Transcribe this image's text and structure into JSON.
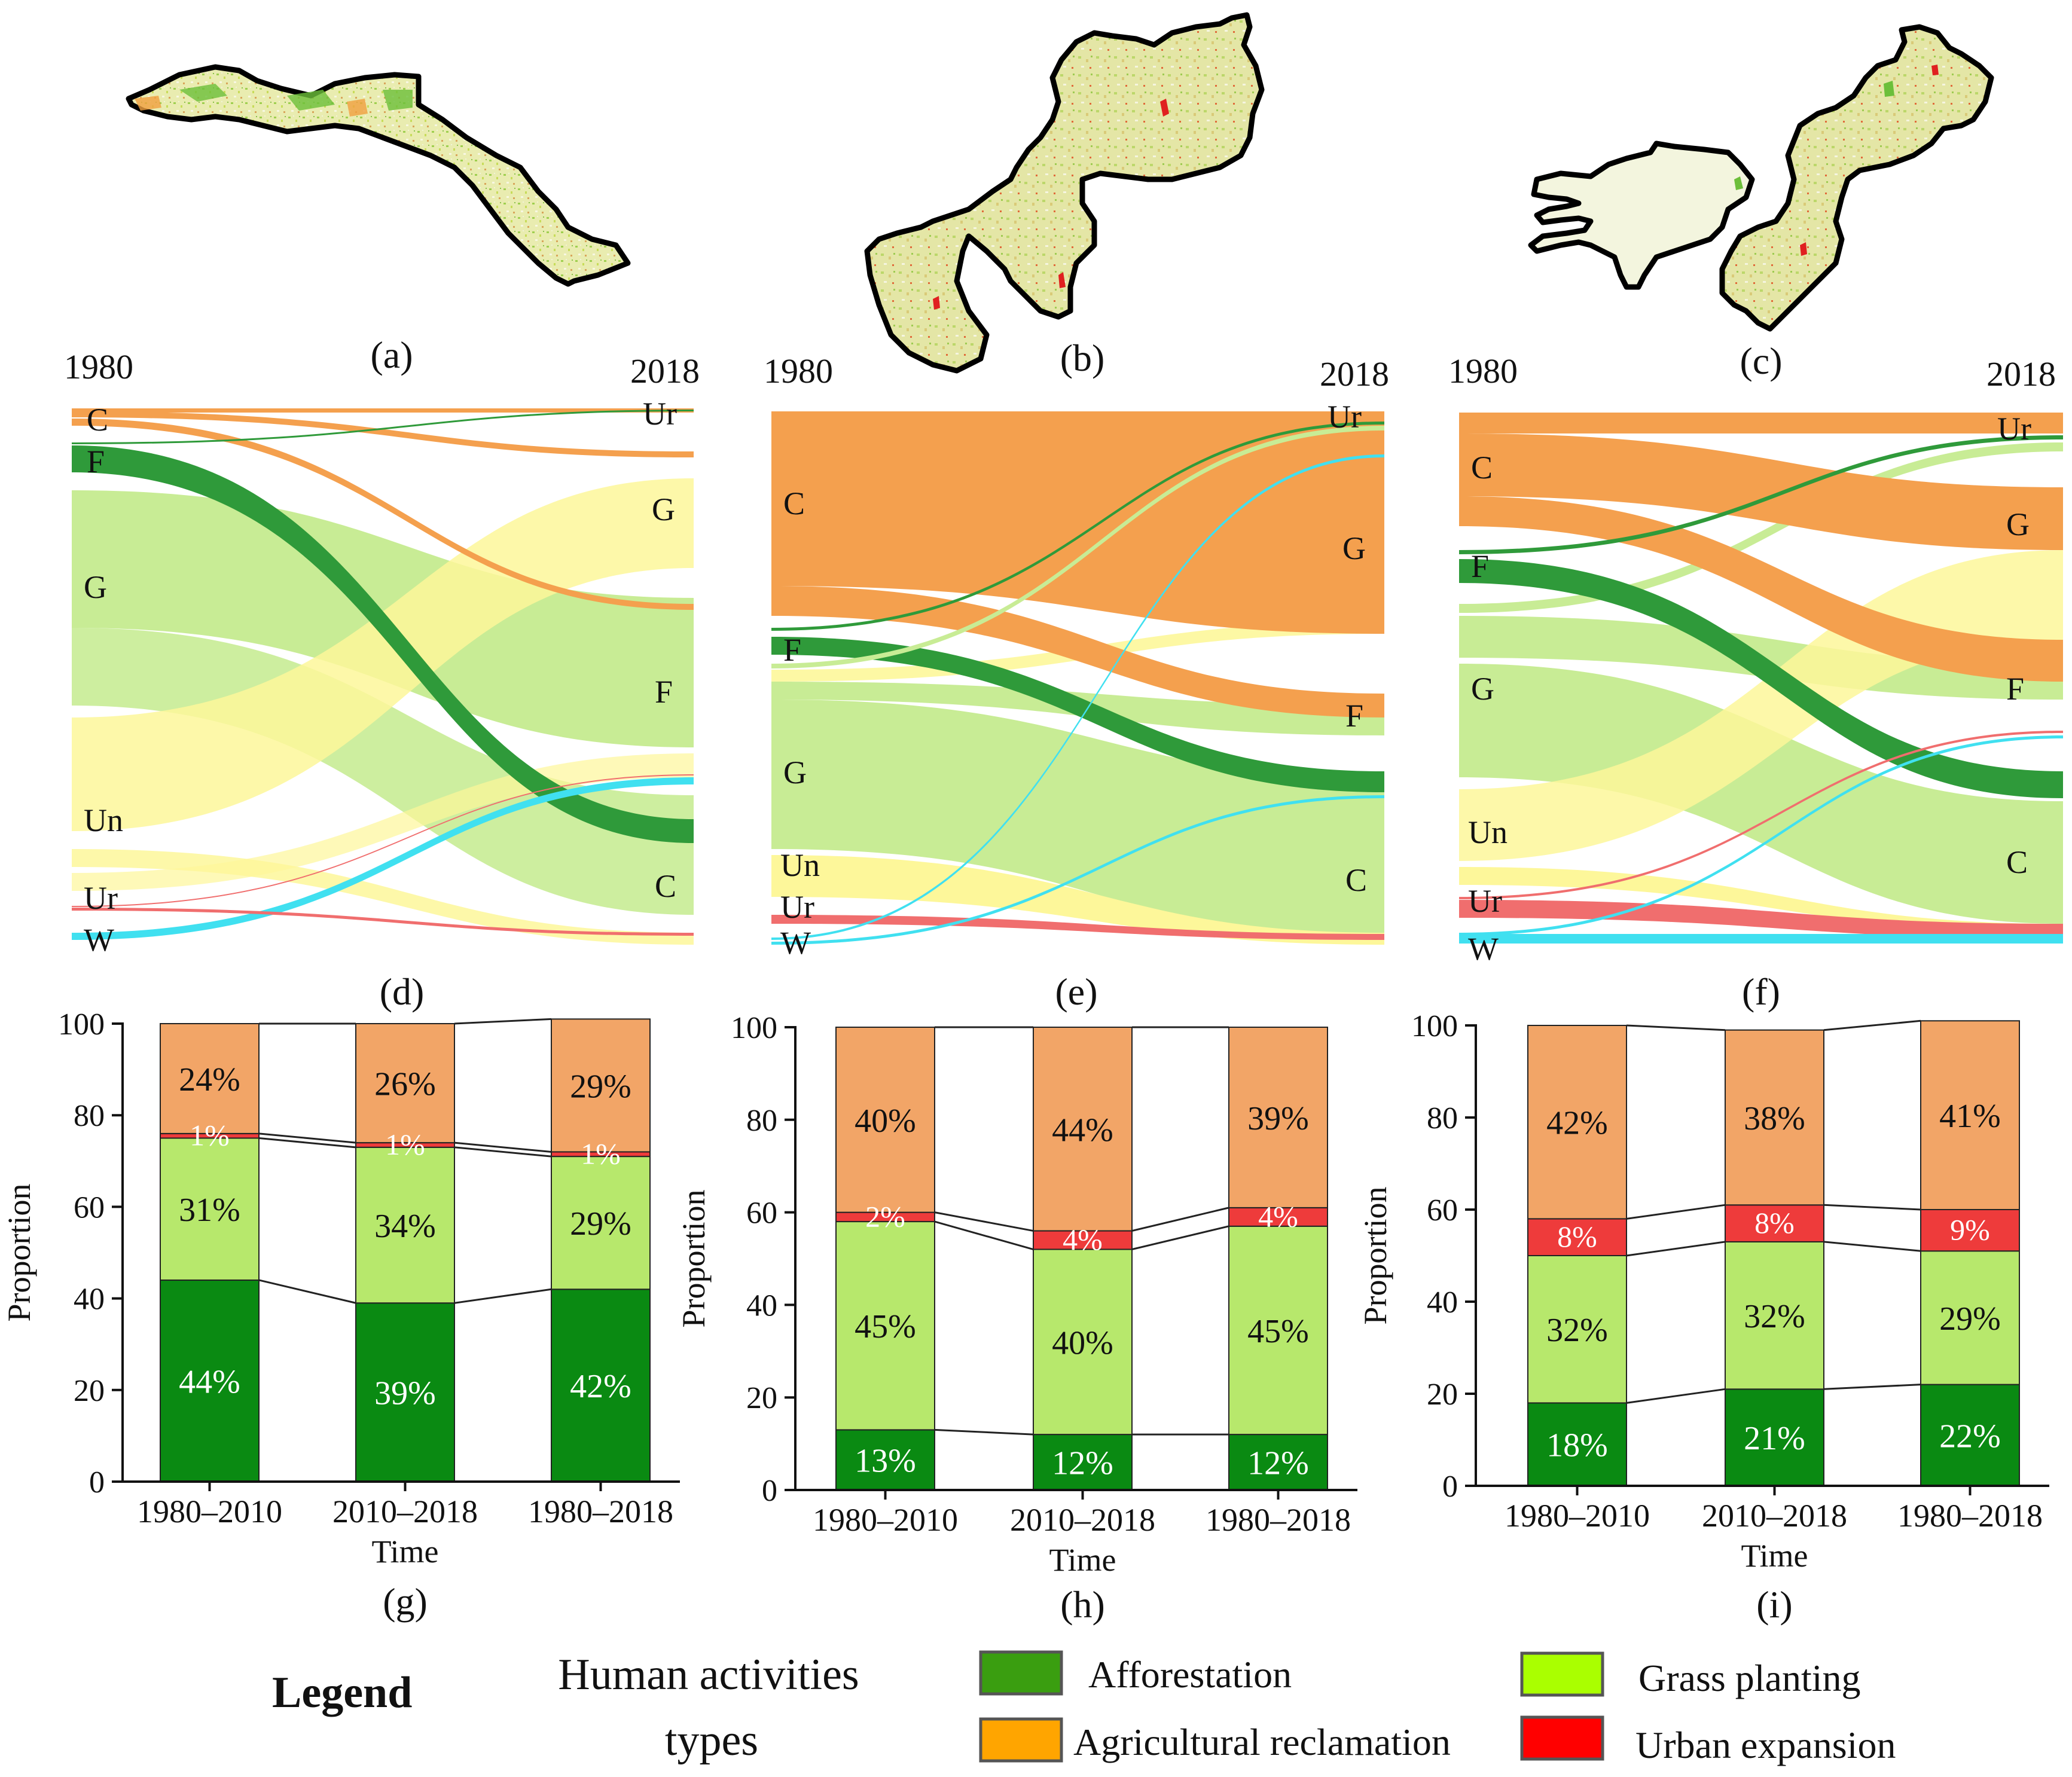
{
  "maps": [
    {
      "label": "(a)"
    },
    {
      "label": "(b)"
    },
    {
      "label": "(c)"
    }
  ],
  "sankeys": [
    {
      "label": "(d)",
      "year_start": "1980",
      "year_end": "2018",
      "left_labels": [
        "C",
        "F",
        "G",
        "Un",
        "Ur",
        "W"
      ],
      "right_labels": [
        "Ur",
        "G",
        "F",
        "C"
      ]
    },
    {
      "label": "(e)",
      "year_start": "1980",
      "year_end": "2018",
      "left_labels": [
        "C",
        "F",
        "G",
        "Un",
        "Ur",
        "W"
      ],
      "right_labels": [
        "Ur",
        "G",
        "F",
        "C"
      ]
    },
    {
      "label": "(f)",
      "year_start": "1980",
      "year_end": "2018",
      "left_labels": [
        "C",
        "F",
        "G",
        "Un",
        "Ur",
        "W"
      ],
      "right_labels": [
        "Ur",
        "G",
        "F",
        "C"
      ]
    }
  ],
  "chart_data": [
    {
      "type": "bar",
      "stacked": true,
      "label": "(g)",
      "categories": [
        "1980–2010",
        "2010–2018",
        "1980–2018"
      ],
      "series": [
        {
          "name": "Afforestation",
          "values": [
            44,
            39,
            42
          ],
          "labels": [
            "44%",
            "39%",
            "42%"
          ]
        },
        {
          "name": "Grass planting",
          "values": [
            31,
            34,
            29
          ],
          "labels": [
            "31%",
            "34%",
            "29%"
          ]
        },
        {
          "name": "Urban expansion",
          "values": [
            1,
            1,
            1
          ],
          "labels": [
            "1%",
            "1%",
            "1%"
          ]
        },
        {
          "name": "Agricultural reclamation",
          "values": [
            24,
            26,
            29
          ],
          "labels": [
            "24%",
            "26%",
            "29%"
          ]
        }
      ],
      "xlabel": "Time",
      "ylabel": "Proportion",
      "ylim": [
        0,
        100
      ],
      "yticks": [
        "0",
        "20",
        "40",
        "60",
        "80",
        "100"
      ]
    },
    {
      "type": "bar",
      "stacked": true,
      "label": "(h)",
      "categories": [
        "1980–2010",
        "2010–2018",
        "1980–2018"
      ],
      "series": [
        {
          "name": "Afforestation",
          "values": [
            13,
            12,
            12
          ],
          "labels": [
            "13%",
            "12%",
            "12%"
          ]
        },
        {
          "name": "Grass planting",
          "values": [
            45,
            40,
            45
          ],
          "labels": [
            "45%",
            "40%",
            "45%"
          ]
        },
        {
          "name": "Urban expansion",
          "values": [
            2,
            4,
            4
          ],
          "labels": [
            "2%",
            "4%",
            "4%"
          ]
        },
        {
          "name": "Agricultural reclamation",
          "values": [
            40,
            44,
            39
          ],
          "labels": [
            "40%",
            "44%",
            "39%"
          ]
        }
      ],
      "xlabel": "Time",
      "ylabel": "Proportion",
      "ylim": [
        0,
        100
      ],
      "yticks": [
        "0",
        "20",
        "40",
        "60",
        "80",
        "100"
      ]
    },
    {
      "type": "bar",
      "stacked": true,
      "label": "(i)",
      "categories": [
        "1980–2010",
        "2010–2018",
        "1980–2018"
      ],
      "series": [
        {
          "name": "Afforestation",
          "values": [
            18,
            21,
            22
          ],
          "labels": [
            "18%",
            "21%",
            "22%"
          ]
        },
        {
          "name": "Grass planting",
          "values": [
            32,
            32,
            29
          ],
          "labels": [
            "32%",
            "32%",
            "29%"
          ]
        },
        {
          "name": "Urban expansion",
          "values": [
            8,
            8,
            9
          ],
          "labels": [
            "8%",
            "8%",
            "9%"
          ]
        },
        {
          "name": "Agricultural reclamation",
          "values": [
            42,
            38,
            41
          ],
          "labels": [
            "42%",
            "38%",
            "41%"
          ]
        }
      ],
      "xlabel": "Time",
      "ylabel": "Proportion",
      "ylim": [
        0,
        100
      ],
      "yticks": [
        "0",
        "20",
        "40",
        "60",
        "80",
        "100"
      ]
    }
  ],
  "colors": {
    "afforestation_bar": "#0a8a12",
    "grass_bar": "#b7e86c",
    "urban_bar": "#ee3b3b",
    "agri_bar": "#f2a567",
    "afforestation_legend": "#3a9e10",
    "grass_legend": "#aaff00",
    "agri_legend": "#ffa500",
    "urban_legend": "#ff0000",
    "sankey_C": "#f4a04e",
    "sankey_F": "#2f9a3a",
    "sankey_G": "#c8ec95",
    "sankey_Un": "#fdf79a",
    "sankey_Ur": "#f06e6e",
    "sankey_W": "#40e0f0"
  },
  "legend": {
    "title": "Legend",
    "subtitle_line1": "Human activities",
    "subtitle_line2": "types",
    "items": [
      {
        "name": "Afforestation",
        "color": "#3a9e10"
      },
      {
        "name": "Agricultural reclamation",
        "color": "#ffa500"
      },
      {
        "name": "Grass planting",
        "color": "#aaff00"
      },
      {
        "name": "Urban expansion",
        "color": "#ff0000"
      }
    ]
  }
}
